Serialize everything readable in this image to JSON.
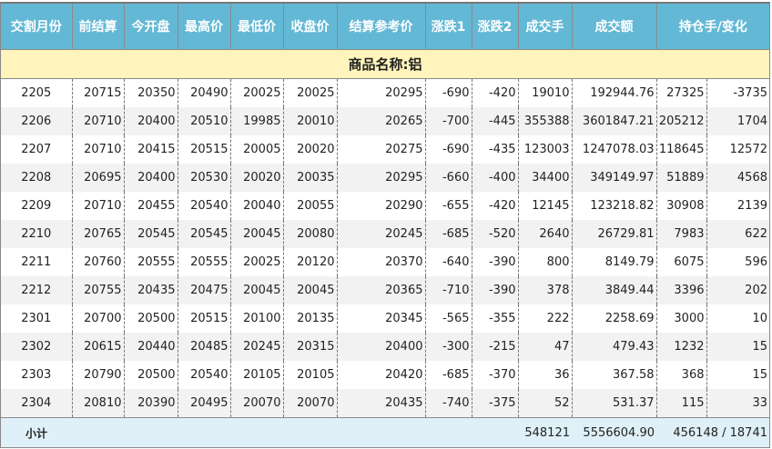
{
  "columns": [
    "交割月份",
    "前结算",
    "今开盘",
    "最高价",
    "最低价",
    "收盘价",
    "结算参考价",
    "涨跌1",
    "涨跌2",
    "成交手",
    "成交额",
    "持仓手/变化"
  ],
  "group_label": "商品名称:铝",
  "rows": [
    [
      "2205",
      "20715",
      "20350",
      "20490",
      "20025",
      "20025",
      "20295",
      "-690",
      "-420",
      "19010",
      "192944.76",
      "27325",
      "-3735"
    ],
    [
      "2206",
      "20710",
      "20400",
      "20510",
      "19985",
      "20010",
      "20265",
      "-700",
      "-445",
      "355388",
      "3601847.21",
      "205212",
      "1704"
    ],
    [
      "2207",
      "20710",
      "20415",
      "20515",
      "20005",
      "20020",
      "20275",
      "-690",
      "-435",
      "123003",
      "1247078.03",
      "118645",
      "12572"
    ],
    [
      "2208",
      "20695",
      "20400",
      "20530",
      "20020",
      "20035",
      "20295",
      "-660",
      "-400",
      "34400",
      "349149.97",
      "51889",
      "4568"
    ],
    [
      "2209",
      "20710",
      "20455",
      "20540",
      "20040",
      "20055",
      "20290",
      "-655",
      "-420",
      "12145",
      "123218.82",
      "30908",
      "2139"
    ],
    [
      "2210",
      "20765",
      "20545",
      "20545",
      "20045",
      "20080",
      "20245",
      "-685",
      "-520",
      "2640",
      "26729.81",
      "7983",
      "622"
    ],
    [
      "2211",
      "20760",
      "20555",
      "20555",
      "20025",
      "20120",
      "20370",
      "-640",
      "-390",
      "800",
      "8149.79",
      "6075",
      "596"
    ],
    [
      "2212",
      "20755",
      "20435",
      "20475",
      "20045",
      "20045",
      "20365",
      "-710",
      "-390",
      "378",
      "3849.44",
      "3396",
      "202"
    ],
    [
      "2301",
      "20700",
      "20500",
      "20515",
      "20100",
      "20135",
      "20345",
      "-565",
      "-355",
      "222",
      "2258.69",
      "3000",
      "10"
    ],
    [
      "2302",
      "20615",
      "20440",
      "20485",
      "20245",
      "20315",
      "20400",
      "-300",
      "-215",
      "47",
      "479.43",
      "1232",
      "15"
    ],
    [
      "2303",
      "20790",
      "20500",
      "20540",
      "20105",
      "20105",
      "20420",
      "-685",
      "-370",
      "36",
      "367.58",
      "368",
      "15"
    ],
    [
      "2304",
      "20810",
      "20390",
      "20495",
      "20070",
      "20070",
      "20435",
      "-740",
      "-375",
      "52",
      "531.37",
      "115",
      "33"
    ]
  ],
  "subtotal": {
    "label": "小计",
    "volume": "548121",
    "turnover": "5556604.90",
    "open_interest": "456148 / 18741"
  }
}
